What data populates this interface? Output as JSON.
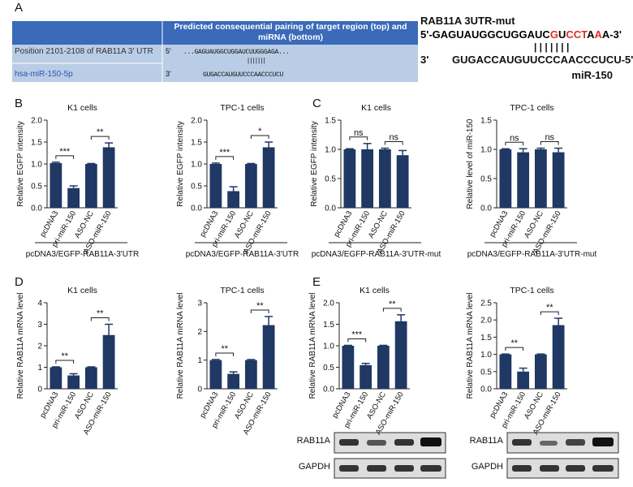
{
  "panel_labels": [
    "A",
    "B",
    "C",
    "D",
    "E"
  ],
  "table": {
    "header": "Predicted consequential pairing of target region (top) and miRNA (bottom)",
    "rows": [
      [
        "Position 2101-2108 of RAB11A 3' UTR",
        "5'",
        "...GAGUAUGGCUGGAUCUUGGGAGA..."
      ],
      [
        "hsa-miR-150-5p",
        "3'",
        "GUGACCAUGUUCCCAACCCUCU"
      ]
    ]
  },
  "mut": {
    "title": "RAB11A 3UTR-mut",
    "top": [
      {
        "text": "5'-GAGUAUGGCUGGAUC",
        "color": "#000000"
      },
      {
        "text": "G",
        "color": "#e03020"
      },
      {
        "text": "U",
        "color": "#000000"
      },
      {
        "text": "CCT",
        "color": "#e03020"
      },
      {
        "text": "A",
        "color": "#000000"
      },
      {
        "text": "A",
        "color": "#e03020"
      },
      {
        "text": "A-3'",
        "color": "#000000"
      }
    ],
    "bottom_prefix": "3'",
    "bottom": "GUGACCAUGUUCCCAACCCUCU-5'",
    "mirna": "miR-150"
  },
  "blots": [
    "RAB11A",
    "GAPDH"
  ],
  "chart_data": [
    {
      "type": "bar",
      "title": "K1 cells",
      "ylabel": "Relative EGFP intensity",
      "color": "#1f3864",
      "categories": [
        "pcDNA3",
        "pri-miR-150",
        "ASO-NC",
        "ASO-miR-150"
      ],
      "values": [
        1.02,
        0.45,
        1.0,
        1.38
      ],
      "errors": [
        0.02,
        0.05,
        0.01,
        0.1
      ],
      "ylim": [
        0,
        2
      ],
      "yticks": [
        {
          "value": 0,
          "label": "0.0"
        },
        {
          "value": 0.5,
          "label": "0.5"
        },
        {
          "value": 1,
          "label": "1.0"
        },
        {
          "value": 1.5,
          "label": "1.5"
        },
        {
          "value": 2,
          "label": "2.0"
        }
      ],
      "sig_labels": [
        "***",
        "**"
      ],
      "group_label": "pcDNA3/EGFP-RAB11A-3'UTR"
    },
    {
      "type": "bar",
      "title": "TPC-1 cells",
      "ylabel": "Relative EGFP intensity",
      "color": "#1f3864",
      "categories": [
        "pcDNA3",
        "pri-miR-150",
        "ASO-NC",
        "ASO-miR-150"
      ],
      "values": [
        1.0,
        0.38,
        1.0,
        1.38
      ],
      "errors": [
        0.02,
        0.1,
        0.01,
        0.12
      ],
      "ylim": [
        0,
        2
      ],
      "yticks": [
        {
          "value": 0,
          "label": "0.0"
        },
        {
          "value": 0.5,
          "label": "0.5"
        },
        {
          "value": 1,
          "label": "1.0"
        },
        {
          "value": 1.5,
          "label": "1.5"
        },
        {
          "value": 2,
          "label": "2.0"
        }
      ],
      "sig_labels": [
        "***",
        "*"
      ],
      "group_label": "pcDNA3/EGFP-RAB11A-3'UTR"
    },
    {
      "type": "bar",
      "title": "K1 cells",
      "ylabel": "Relative EGFP intensity",
      "color": "#1f3864",
      "categories": [
        "pcDNA3",
        "pri-miR-150",
        "ASO-NC",
        "ASO-miR-150"
      ],
      "values": [
        1.0,
        1.0,
        1.0,
        0.9
      ],
      "errors": [
        0.01,
        0.1,
        0.02,
        0.08
      ],
      "ylim": [
        0,
        1.5
      ],
      "yticks": [
        {
          "value": 0,
          "label": "0.0"
        },
        {
          "value": 0.5,
          "label": "0.5"
        },
        {
          "value": 1,
          "label": "1.0"
        },
        {
          "value": 1.5,
          "label": "1.5"
        }
      ],
      "sig_labels": [
        "ns",
        "ns"
      ],
      "group_label": "pcDNA3/EGFP-RAB11A-3'UTR-mut"
    },
    {
      "type": "bar",
      "title": "TPC-1 cells",
      "ylabel": "Relative level of miR-150",
      "color": "#1f3864",
      "categories": [
        "pcDNA3",
        "pri-miR-150",
        "ASO-NC",
        "ASO-miR-150"
      ],
      "values": [
        1.0,
        0.95,
        1.0,
        0.95
      ],
      "errors": [
        0.01,
        0.06,
        0.02,
        0.07
      ],
      "ylim": [
        0,
        1.5
      ],
      "yticks": [
        {
          "value": 0,
          "label": "0.0"
        },
        {
          "value": 0.5,
          "label": "0.5"
        },
        {
          "value": 1,
          "label": "1.0"
        },
        {
          "value": 1.5,
          "label": "1.5"
        }
      ],
      "sig_labels": [
        "ns",
        "ns"
      ],
      "group_label": "pcDNA3/EGFP-RAB11A-3'UTR-mut"
    },
    {
      "type": "bar",
      "title": "K1 cells",
      "ylabel": "Relative RAB11A mRNA level",
      "color": "#1f3864",
      "categories": [
        "pcDNA3",
        "pri-miR-150",
        "ASO-NC",
        "ASO-miR-150"
      ],
      "values": [
        1.0,
        0.62,
        1.0,
        2.5
      ],
      "errors": [
        0.02,
        0.08,
        0.02,
        0.5
      ],
      "ylim": [
        0,
        4
      ],
      "yticks": [
        0,
        1,
        2,
        3,
        4
      ],
      "sig_labels": [
        "**",
        "**"
      ]
    },
    {
      "type": "bar",
      "title": "TPC-1 cells",
      "ylabel": "Relative RAB11A mRNA level",
      "color": "#1f3864",
      "categories": [
        "pcDNA3",
        "pri-miR-150",
        "ASO-NC",
        "ASO-miR-150"
      ],
      "values": [
        1.0,
        0.52,
        1.0,
        2.22
      ],
      "errors": [
        0.02,
        0.07,
        0.02,
        0.3
      ],
      "ylim": [
        0,
        3
      ],
      "yticks": [
        0,
        1,
        2,
        3
      ],
      "sig_labels": [
        "**",
        "**"
      ]
    },
    {
      "type": "bar",
      "title": "K1 cells",
      "ylabel": "Relative RAB11A mRNA level",
      "color": "#1f3864",
      "categories": [
        "pcDNA3",
        "pri-miR-150",
        "ASO-NC",
        "ASO-miR-150"
      ],
      "values": [
        1.0,
        0.55,
        1.0,
        1.57
      ],
      "errors": [
        0.01,
        0.04,
        0.01,
        0.15
      ],
      "ylim": [
        0,
        2
      ],
      "yticks": [
        {
          "value": 0,
          "label": "0.0"
        },
        {
          "value": 0.5,
          "label": "0.5"
        },
        {
          "value": 1,
          "label": "1.0"
        },
        {
          "value": 1.5,
          "label": "1.5"
        },
        {
          "value": 2,
          "label": "2.0"
        }
      ],
      "sig_labels": [
        "***",
        "**"
      ]
    },
    {
      "type": "bar",
      "title": "TPC-1 cells",
      "ylabel": "Relative RAB11A mRNA level",
      "color": "#1f3864",
      "categories": [
        "pcDNA3",
        "pri-miR-150",
        "ASO-NC",
        "ASO-miR-150"
      ],
      "values": [
        1.0,
        0.5,
        1.0,
        1.85
      ],
      "errors": [
        0.01,
        0.1,
        0.01,
        0.2
      ],
      "ylim": [
        0,
        2.5
      ],
      "yticks": [
        {
          "value": 0,
          "label": "0.0"
        },
        {
          "value": 0.5,
          "label": "0.5"
        },
        {
          "value": 1,
          "label": "1.0"
        },
        {
          "value": 1.5,
          "label": "1.5"
        },
        {
          "value": 2,
          "label": "2.0"
        },
        {
          "value": 2.5,
          "label": "2.5"
        }
      ],
      "sig_labels": [
        "**",
        "**"
      ]
    }
  ]
}
